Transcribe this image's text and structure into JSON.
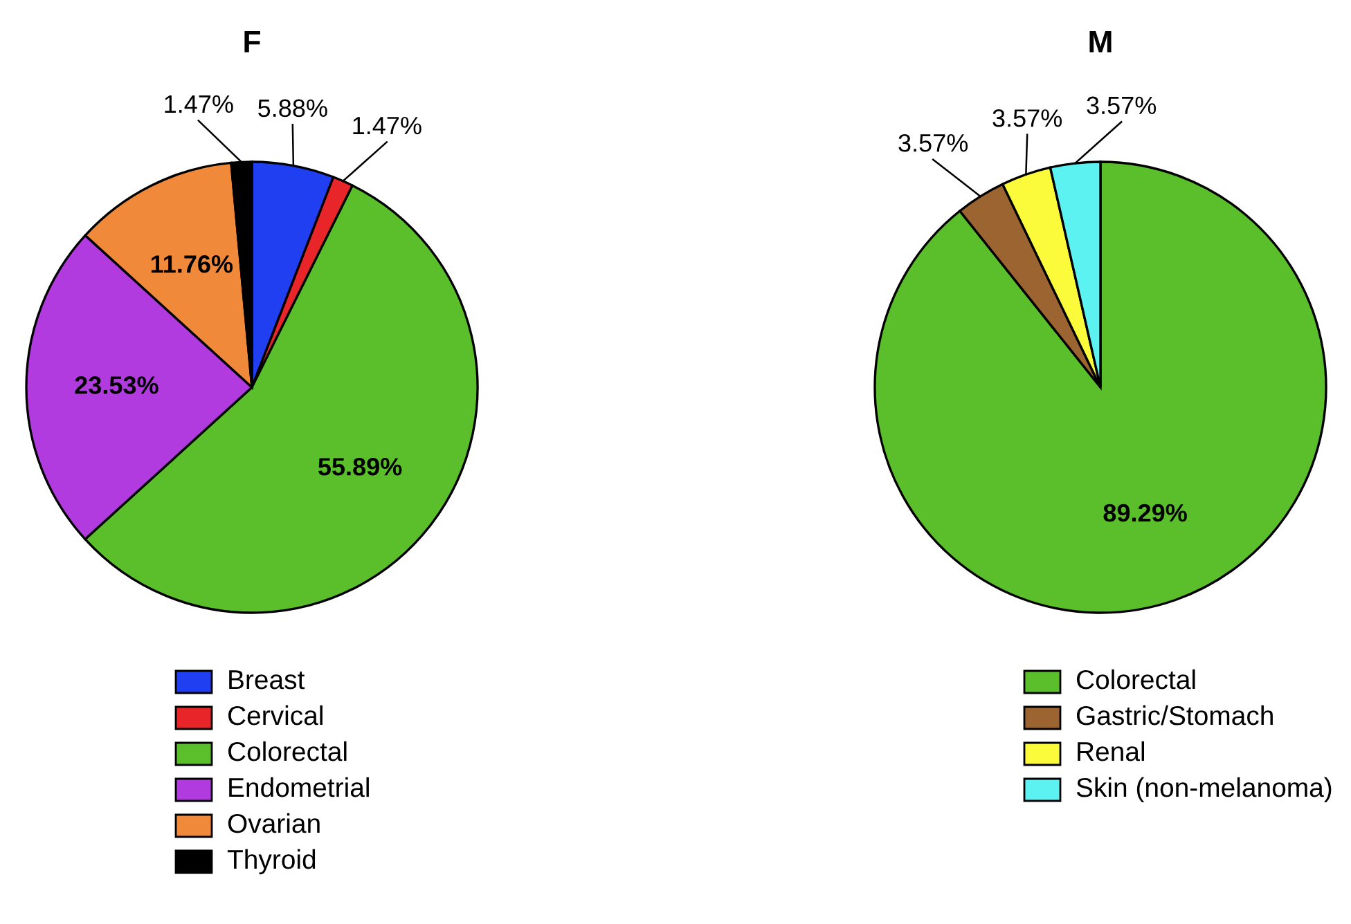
{
  "chart_data": [
    {
      "type": "pie",
      "title": "F",
      "categories": [
        "Breast",
        "Cervical",
        "Colorectal",
        "Endometrial",
        "Ovarian",
        "Thyroid"
      ],
      "values": [
        5.88,
        1.47,
        55.89,
        23.53,
        11.76,
        1.47
      ],
      "value_labels": [
        "5.88%",
        "1.47%",
        "55.89%",
        "23.53%",
        "11.76%",
        "1.47%"
      ],
      "colors": [
        "#1f3ff0",
        "#e8262a",
        "#5abf2a",
        "#b23be0",
        "#f08a3a",
        "#000000"
      ],
      "legend": "bottom"
    },
    {
      "type": "pie",
      "title": "M",
      "categories": [
        "Colorectal",
        "Gastric/Stomach",
        "Renal",
        "Skin (non-melanoma)"
      ],
      "values": [
        89.29,
        3.57,
        3.57,
        3.57
      ],
      "value_labels": [
        "89.29%",
        "3.57%",
        "3.57%",
        "3.57%"
      ],
      "colors": [
        "#5abf2a",
        "#9c6431",
        "#fbfb3c",
        "#5df2f2"
      ],
      "legend": "bottom"
    }
  ]
}
